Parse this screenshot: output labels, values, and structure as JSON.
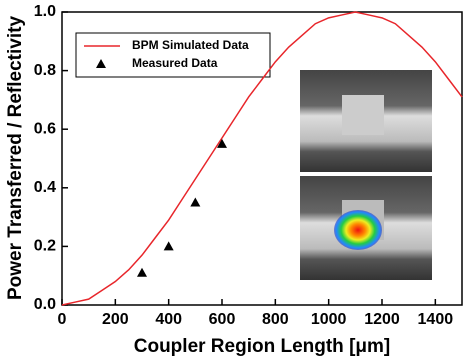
{
  "chart_data": {
    "type": "line",
    "x_label": "Coupler Region Length [μm]",
    "y_label": "Power Transferred / Reflectivity",
    "xlim": [
      0,
      1500
    ],
    "xticks": [
      0,
      200,
      400,
      600,
      800,
      1000,
      1200,
      1400
    ],
    "ylim": [
      0,
      1.0
    ],
    "yticks": [
      {
        "value": 0,
        "label": "0.0"
      },
      {
        "value": 0.2,
        "label": "0.2"
      },
      {
        "value": 0.4,
        "label": "0.4"
      },
      {
        "value": 0.6,
        "label": "0.6"
      },
      {
        "value": 0.8,
        "label": "0.8"
      },
      {
        "value": 1.0,
        "label": "1.0"
      }
    ],
    "legend": "upper left",
    "series": [
      {
        "name": "BPM Simulated Data",
        "color": "#e8262b",
        "x": [
          0,
          50,
          100,
          150,
          200,
          250,
          300,
          350,
          400,
          450,
          500,
          550,
          600,
          650,
          700,
          750,
          800,
          850,
          900,
          950,
          1000,
          1050,
          1100,
          1150,
          1200,
          1250,
          1300,
          1350,
          1400,
          1450,
          1500
        ],
        "values": [
          0,
          0.01,
          0.02,
          0.05,
          0.08,
          0.12,
          0.17,
          0.23,
          0.29,
          0.36,
          0.43,
          0.5,
          0.57,
          0.64,
          0.71,
          0.77,
          0.83,
          0.88,
          0.92,
          0.96,
          0.98,
          0.99,
          1.0,
          0.99,
          0.98,
          0.96,
          0.92,
          0.88,
          0.83,
          0.77,
          0.71
        ]
      },
      {
        "name": "Measured Data",
        "color": "#000000",
        "marker": "triangle",
        "x": [
          300,
          400,
          500,
          600
        ],
        "values": [
          0.11,
          0.2,
          0.35,
          0.55
        ]
      }
    ]
  }
}
